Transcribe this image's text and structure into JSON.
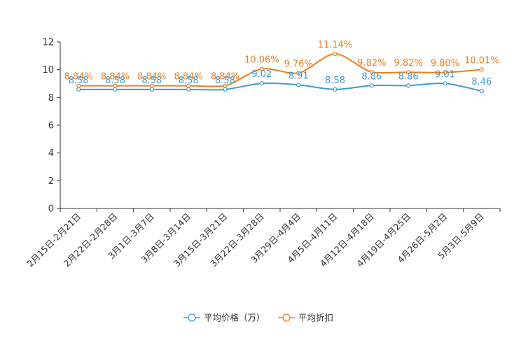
{
  "chart_data": {
    "type": "line",
    "title": "",
    "xlabel": "",
    "ylabel": "",
    "ylim": [
      0,
      12
    ],
    "yticks": [
      0,
      2,
      4,
      6,
      8,
      10,
      12
    ],
    "ytick_labels": [
      "0",
      "2",
      "4",
      "6",
      "8",
      "10",
      "12"
    ],
    "grid": false,
    "legend_position": "bottom-center",
    "categories": [
      "2月15日-2月21日",
      "2月22日-2月28日",
      "3月1日-3月7日",
      "3月8日-3月14日",
      "3月15日-3月21日",
      "3月22日-3月28日",
      "3月29日-4月4日",
      "4月5日-4月11日",
      "4月12日-4月18日",
      "4月19日-4月25日",
      "4月26日-5月2日",
      "5月3日-5月9日"
    ],
    "series": [
      {
        "name": "平均价格（万）",
        "color": "#3d9bd1",
        "values": [
          8.58,
          8.58,
          8.58,
          8.58,
          8.58,
          9.02,
          8.91,
          8.58,
          8.86,
          8.86,
          9.01,
          8.46
        ],
        "labels": [
          "8.58",
          "8.58",
          "8.58",
          "8.58",
          "8.58",
          "9.02",
          "8.91",
          "8.58",
          "8.86",
          "8.86",
          "9.01",
          "8.46"
        ]
      },
      {
        "name": "平均折扣",
        "color": "#f07d1a",
        "values": [
          8.84,
          8.84,
          8.84,
          8.84,
          8.84,
          10.06,
          9.76,
          11.14,
          9.82,
          9.82,
          9.8,
          10.01
        ],
        "labels": [
          "8.84%",
          "8.84%",
          "8.84%",
          "8.84%",
          "8.84%",
          "10.06%",
          "9.76%",
          "11.14%",
          "9.82%",
          "9.82%",
          "9.80%",
          "10.01%"
        ]
      }
    ]
  }
}
